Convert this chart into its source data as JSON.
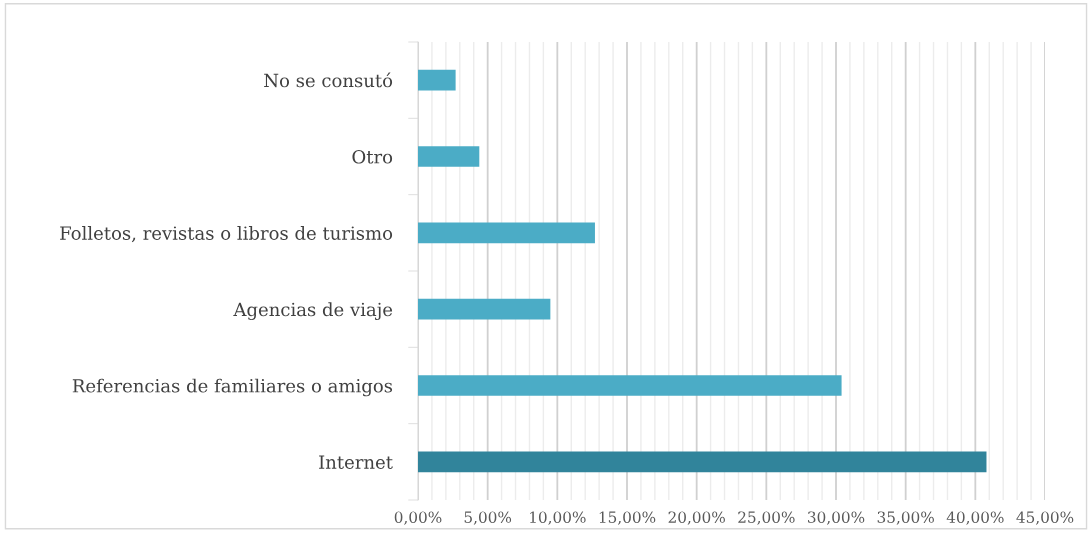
{
  "chart_data": {
    "type": "bar",
    "orientation": "horizontal",
    "categories": [
      "No se consutó",
      "Otro",
      "Folletos, revistas o libros de turismo",
      "Agencias de viaje",
      "Referencias de familiares o amigos",
      "Internet"
    ],
    "values": [
      2.7,
      4.4,
      12.7,
      9.5,
      30.4,
      40.8
    ],
    "colors": [
      "#4bacc6",
      "#4bacc6",
      "#4bacc6",
      "#4bacc6",
      "#4bacc6",
      "#31849b"
    ],
    "xlim": [
      0,
      45
    ],
    "xticks": [
      {
        "value": 0,
        "label": "0,00%"
      },
      {
        "value": 1,
        "label": null
      },
      {
        "value": 2,
        "label": null
      },
      {
        "value": 3,
        "label": null
      },
      {
        "value": 4,
        "label": null
      },
      {
        "value": 5,
        "label": "5,00%"
      },
      {
        "value": 6,
        "label": null
      },
      {
        "value": 7,
        "label": null
      },
      {
        "value": 8,
        "label": null
      },
      {
        "value": 9,
        "label": null
      },
      {
        "value": 10,
        "label": "10,00%"
      },
      {
        "value": 11,
        "label": null
      },
      {
        "value": 12,
        "label": null
      },
      {
        "value": 13,
        "label": null
      },
      {
        "value": 14,
        "label": null
      },
      {
        "value": 15,
        "label": "15,00%"
      },
      {
        "value": 16,
        "label": null
      },
      {
        "value": 17,
        "label": null
      },
      {
        "value": 18,
        "label": null
      },
      {
        "value": 19,
        "label": null
      },
      {
        "value": 20,
        "label": "20,00%"
      },
      {
        "value": 21,
        "label": null
      },
      {
        "value": 22,
        "label": null
      },
      {
        "value": 23,
        "label": null
      },
      {
        "value": 24,
        "label": null
      },
      {
        "value": 25,
        "label": "25,00%"
      },
      {
        "value": 26,
        "label": null
      },
      {
        "value": 27,
        "label": null
      },
      {
        "value": 28,
        "label": null
      },
      {
        "value": 29,
        "label": null
      },
      {
        "value": 30,
        "label": "30,00%"
      },
      {
        "value": 31,
        "label": null
      },
      {
        "value": 32,
        "label": null
      },
      {
        "value": 33,
        "label": null
      },
      {
        "value": 34,
        "label": null
      },
      {
        "value": 35,
        "label": "35,00%"
      },
      {
        "value": 36,
        "label": null
      },
      {
        "value": 37,
        "label": null
      },
      {
        "value": 38,
        "label": null
      },
      {
        "value": 39,
        "label": null
      },
      {
        "value": 40,
        "label": "40,00%"
      },
      {
        "value": 41,
        "label": null
      },
      {
        "value": 42,
        "label": null
      },
      {
        "value": 43,
        "label": null
      },
      {
        "value": 44,
        "label": null
      },
      {
        "value": 45,
        "label": "45,00%"
      }
    ],
    "grid": "x"
  }
}
